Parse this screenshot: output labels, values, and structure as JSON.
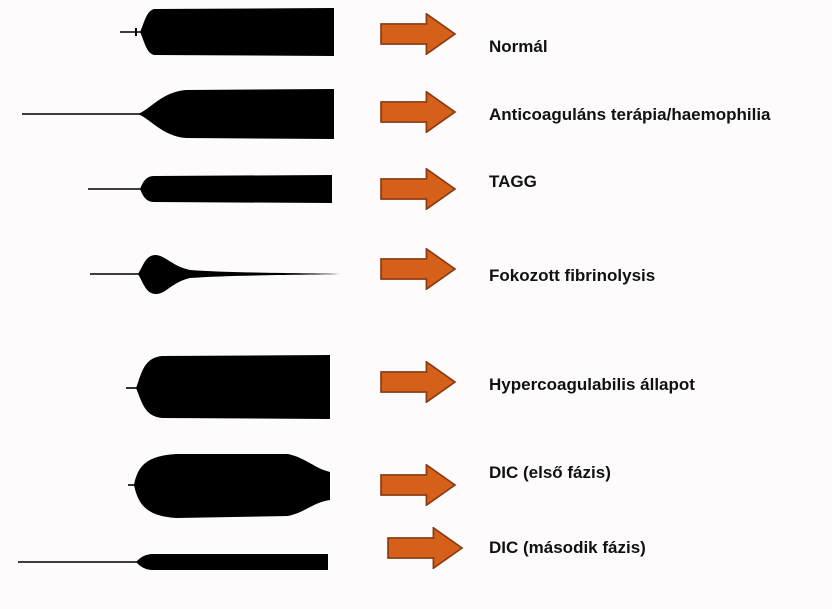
{
  "colors": {
    "background": "#fdfbfc",
    "trace": "#000000",
    "arrow_fill": "#d4601a",
    "arrow_stroke": "#8a3a10",
    "label_text": "#111111"
  },
  "patterns": [
    {
      "label": "Normál",
      "trace_icon": "teg-normal-trace-icon"
    },
    {
      "label": "Anticoaguláns terápia/haemophilia",
      "trace_icon": "teg-anticoagulant-trace-icon"
    },
    {
      "label": "TAGG",
      "trace_icon": "teg-tagg-trace-icon"
    },
    {
      "label": "Fokozott fibrinolysis",
      "trace_icon": "teg-fibrinolysis-trace-icon"
    },
    {
      "label": "Hypercoagulabilis állapot",
      "trace_icon": "teg-hypercoagulable-trace-icon"
    },
    {
      "label": "DIC (első fázis)",
      "trace_icon": "teg-dic-first-phase-trace-icon"
    },
    {
      "label": "DIC (második fázis)",
      "trace_icon": "teg-dic-second-phase-trace-icon"
    }
  ]
}
